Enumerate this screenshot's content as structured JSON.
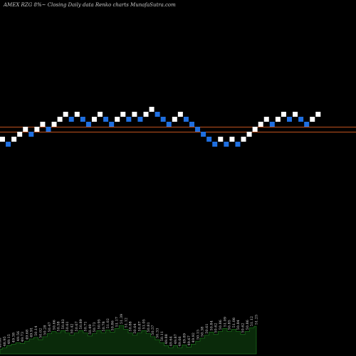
{
  "title": "AMEX  RZG 8%~  Closing Daily data  Renko  charts MunafaSutra.com",
  "colors": {
    "background": "#000000",
    "up_brick": "#ffffff",
    "down_brick": "#1f6fe0",
    "reference_line": "#c0521e",
    "volume_area": "#0a2a0a",
    "volume_outline": "#1a6a1a"
  },
  "chart_data": {
    "type": "renko",
    "reference_lines": [
      1,
      0
    ],
    "bricks": [
      {
        "level": -1,
        "dir": "up"
      },
      {
        "level": -2,
        "dir": "down"
      },
      {
        "level": -1,
        "dir": "up"
      },
      {
        "level": 0,
        "dir": "up"
      },
      {
        "level": 1,
        "dir": "up"
      },
      {
        "level": 0,
        "dir": "down"
      },
      {
        "level": 1,
        "dir": "up"
      },
      {
        "level": 2,
        "dir": "up"
      },
      {
        "level": 1,
        "dir": "down"
      },
      {
        "level": 2,
        "dir": "up"
      },
      {
        "level": 3,
        "dir": "up"
      },
      {
        "level": 4,
        "dir": "up"
      },
      {
        "level": 3,
        "dir": "down"
      },
      {
        "level": 4,
        "dir": "up"
      },
      {
        "level": 3,
        "dir": "down"
      },
      {
        "level": 2,
        "dir": "down"
      },
      {
        "level": 3,
        "dir": "up"
      },
      {
        "level": 4,
        "dir": "up"
      },
      {
        "level": 3,
        "dir": "down"
      },
      {
        "level": 2,
        "dir": "down"
      },
      {
        "level": 3,
        "dir": "up"
      },
      {
        "level": 4,
        "dir": "up"
      },
      {
        "level": 3,
        "dir": "down"
      },
      {
        "level": 4,
        "dir": "up"
      },
      {
        "level": 3,
        "dir": "down"
      },
      {
        "level": 4,
        "dir": "up"
      },
      {
        "level": 5,
        "dir": "up"
      },
      {
        "level": 4,
        "dir": "down"
      },
      {
        "level": 3,
        "dir": "down"
      },
      {
        "level": 2,
        "dir": "down"
      },
      {
        "level": 3,
        "dir": "up"
      },
      {
        "level": 4,
        "dir": "up"
      },
      {
        "level": 3,
        "dir": "down"
      },
      {
        "level": 2,
        "dir": "down"
      },
      {
        "level": 1,
        "dir": "down"
      },
      {
        "level": 0,
        "dir": "down"
      },
      {
        "level": -1,
        "dir": "down"
      },
      {
        "level": -2,
        "dir": "down"
      },
      {
        "level": -1,
        "dir": "up"
      },
      {
        "level": -2,
        "dir": "down"
      },
      {
        "level": -1,
        "dir": "up"
      },
      {
        "level": -2,
        "dir": "down"
      },
      {
        "level": -1,
        "dir": "up"
      },
      {
        "level": 0,
        "dir": "up"
      },
      {
        "level": 1,
        "dir": "up"
      },
      {
        "level": 2,
        "dir": "up"
      },
      {
        "level": 3,
        "dir": "up"
      },
      {
        "level": 2,
        "dir": "down"
      },
      {
        "level": 3,
        "dir": "up"
      },
      {
        "level": 4,
        "dir": "up"
      },
      {
        "level": 3,
        "dir": "down"
      },
      {
        "level": 4,
        "dir": "up"
      },
      {
        "level": 3,
        "dir": "down"
      },
      {
        "level": 2,
        "dir": "down"
      },
      {
        "level": 3,
        "dir": "up"
      },
      {
        "level": 4,
        "dir": "up"
      }
    ],
    "volume": [
      {
        "value": 6,
        "label": "48.86"
      },
      {
        "value": 8,
        "label": "48.95"
      },
      {
        "value": 11,
        "label": "49.15"
      },
      {
        "value": 13,
        "label": "49.38"
      },
      {
        "value": 15,
        "label": "49.56"
      },
      {
        "value": 14,
        "label": "49.73"
      },
      {
        "value": 17,
        "label": "49.68"
      },
      {
        "value": 20,
        "label": "49.91"
      },
      {
        "value": 22,
        "label": "50.14"
      },
      {
        "value": 19,
        "label": "50.02"
      },
      {
        "value": 23,
        "label": "50.28"
      },
      {
        "value": 27,
        "label": "50.47"
      },
      {
        "value": 30,
        "label": "50.66"
      },
      {
        "value": 28,
        "label": "50.58"
      },
      {
        "value": 31,
        "label": "50.83"
      },
      {
        "value": 28,
        "label": "50.61"
      },
      {
        "value": 25,
        "label": "50.42"
      },
      {
        "value": 28,
        "label": "50.67"
      },
      {
        "value": 31,
        "label": "50.89"
      },
      {
        "value": 28,
        "label": "50.71"
      },
      {
        "value": 24,
        "label": "50.49"
      },
      {
        "value": 27,
        "label": "50.73"
      },
      {
        "value": 31,
        "label": "50.95"
      },
      {
        "value": 28,
        "label": "50.78"
      },
      {
        "value": 32,
        "label": "51.02"
      },
      {
        "value": 29,
        "label": "50.86"
      },
      {
        "value": 34,
        "label": "51.17"
      },
      {
        "value": 38,
        "label": "51.39"
      },
      {
        "value": 33,
        "label": "51.12"
      },
      {
        "value": 28,
        "label": "50.88"
      },
      {
        "value": 25,
        "label": "50.64"
      },
      {
        "value": 28,
        "label": "50.87"
      },
      {
        "value": 31,
        "label": "51.05"
      },
      {
        "value": 27,
        "label": "50.81"
      },
      {
        "value": 23,
        "label": "50.57"
      },
      {
        "value": 19,
        "label": "50.33"
      },
      {
        "value": 15,
        "label": "50.11"
      },
      {
        "value": 11,
        "label": "49.88"
      },
      {
        "value": 8,
        "label": "49.64"
      },
      {
        "value": 11,
        "label": "49.87"
      },
      {
        "value": 8,
        "label": "49.66"
      },
      {
        "value": 12,
        "label": "49.89"
      },
      {
        "value": 9,
        "label": "49.67"
      },
      {
        "value": 13,
        "label": "49.92"
      },
      {
        "value": 17,
        "label": "50.15"
      },
      {
        "value": 21,
        "label": "50.38"
      },
      {
        "value": 25,
        "label": "50.61"
      },
      {
        "value": 29,
        "label": "50.84"
      },
      {
        "value": 26,
        "label": "50.62"
      },
      {
        "value": 30,
        "label": "50.86"
      },
      {
        "value": 34,
        "label": "51.09"
      },
      {
        "value": 30,
        "label": "50.85"
      },
      {
        "value": 33,
        "label": "51.08"
      },
      {
        "value": 30,
        "label": "50.84"
      },
      {
        "value": 26,
        "label": "50.62"
      },
      {
        "value": 30,
        "label": "50.86"
      },
      {
        "value": 35,
        "label": "51.12"
      },
      {
        "value": 37,
        "label": "51.25"
      }
    ]
  }
}
